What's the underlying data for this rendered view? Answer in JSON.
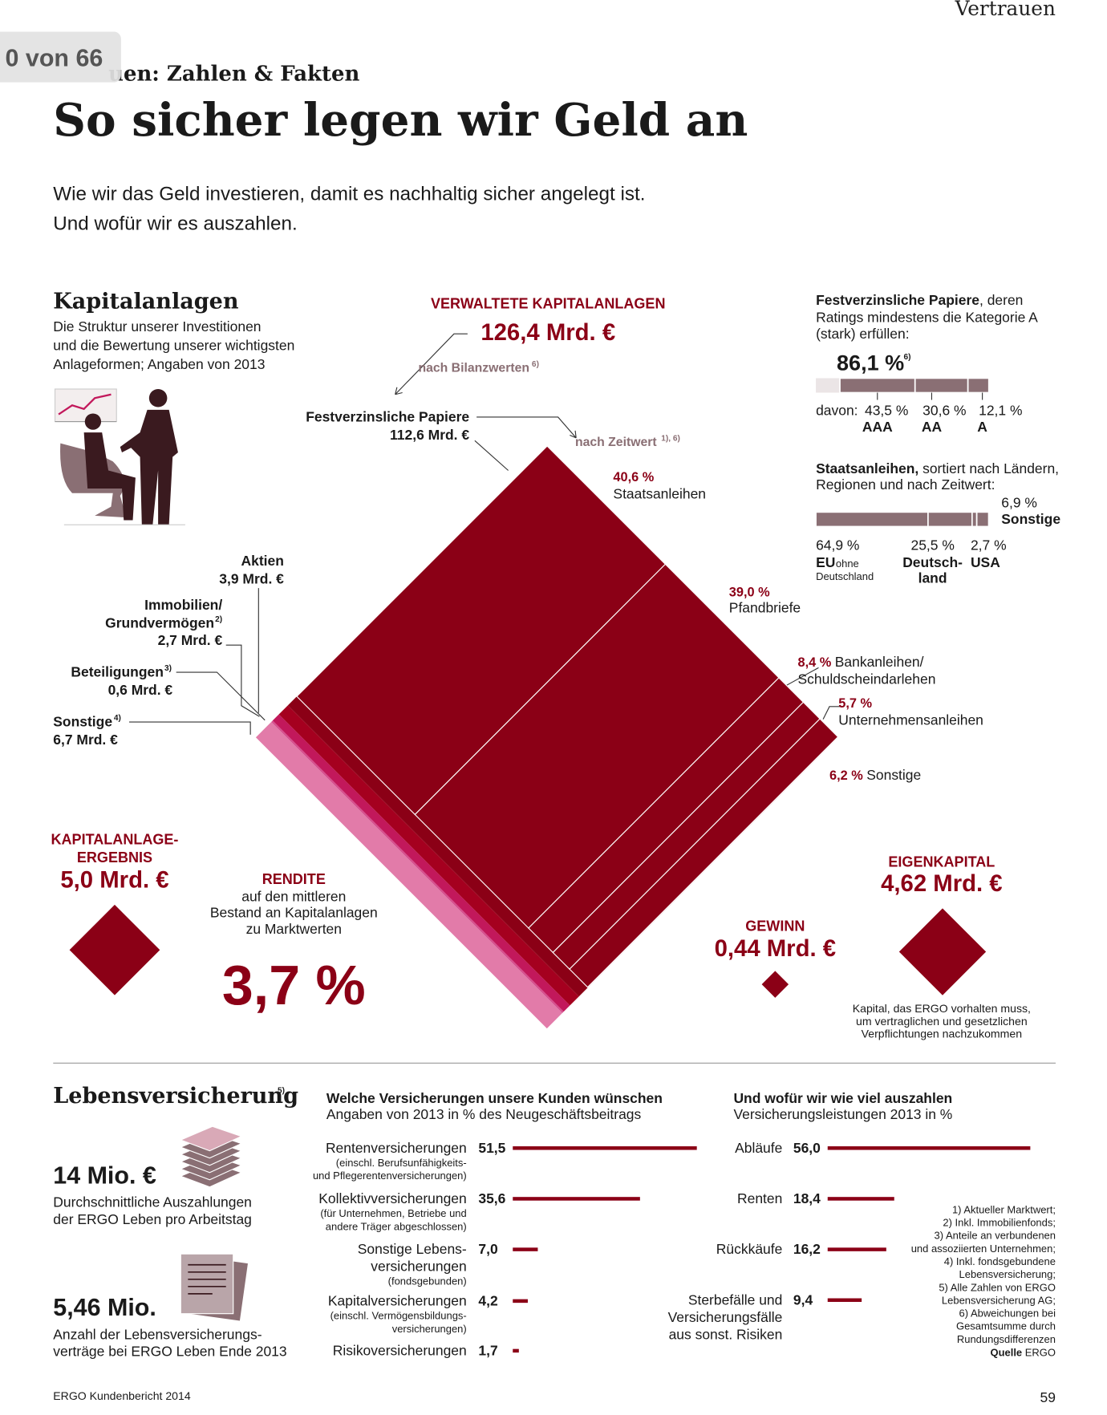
{
  "header": {
    "section": "Vertrauen",
    "page_indicator": "0 von 66",
    "kicker": "uen: Zahlen & Fakten",
    "title": "So sicher legen wir Geld an",
    "intro": [
      "Wie wir das Geld investieren, damit es nachhaltig sicher angelegt ist.",
      "Und wofür wir es auszahlen."
    ]
  },
  "kapitalanlagen": {
    "heading": "Kapitalanlagen",
    "description": [
      "Die Struktur unserer Investitionen",
      "und die Bewertung unserer wichtigsten",
      "Anlageformen; Angaben von 2013"
    ],
    "total": {
      "label": "VERWALTETE KAPITALANLAGEN",
      "value": 126.4,
      "value_label": "126,4 Mrd. €",
      "note": "nach Bilanzwerten",
      "ref": "6)"
    },
    "festverzinslich": {
      "name": "Festverzinsliche Papiere",
      "value": 112.6,
      "value_label": "112,6 Mrd. €",
      "color": "#8b0016",
      "breakdown_note": "nach Zeitwert",
      "breakdown_ref": "1), 6)",
      "breakdown": [
        {
          "share": 40.6,
          "share_label": "40,6 %",
          "name": [
            "Staatsanleihen"
          ]
        },
        {
          "share": 39.0,
          "share_label": "39,0 %",
          "name": [
            "Pfandbriefe"
          ]
        },
        {
          "share": 8.4,
          "share_label": "8,4 %",
          "name": [
            "Bankanleihen/",
            "Schuldscheindarlehen"
          ]
        },
        {
          "share": 5.7,
          "share_label": "5,7 %",
          "name": [
            "Unternehmensanleihen"
          ]
        },
        {
          "share": 6.2,
          "share_label": "6,2 %",
          "name": [
            "Sonstige"
          ]
        }
      ]
    },
    "other_assets": [
      {
        "name": [
          "Aktien"
        ],
        "value": 3.9,
        "value_label": "3,9 Mrd. €",
        "color": "#a5001f"
      },
      {
        "name": [
          "Immobilien/",
          "Grundvermögen"
        ],
        "ref": "2)",
        "value": 2.7,
        "value_label": "2,7 Mrd. €",
        "color": "#c2185b"
      },
      {
        "name": [
          "Beteiligungen"
        ],
        "ref": "3)",
        "value": 0.6,
        "value_label": "0,6 Mrd. €",
        "color": "#d6508f"
      },
      {
        "name": [
          "Sonstige"
        ],
        "ref": "4)",
        "value": 6.7,
        "value_label": "6,7 Mrd. €",
        "color": "#e27ba9"
      }
    ],
    "rating": {
      "title_bold": "Festverzinsliche Papiere",
      "title_rest": ", deren",
      "title_lines": [
        "Ratings mindestens die Kategorie A",
        "(stark) erfüllen:"
      ],
      "value": 86.1,
      "value_label": "86,1 %",
      "ref": "6)",
      "prefix": "davon:",
      "color": "#8a6f74",
      "segments": [
        {
          "share": 43.5,
          "share_label": "43,5 %",
          "name": "AAA"
        },
        {
          "share": 30.6,
          "share_label": "30,6 %",
          "name": "AA"
        },
        {
          "share": 12.1,
          "share_label": "12,1 %",
          "name": "A"
        }
      ]
    },
    "sovereign": {
      "title_bold": "Staatsanleihen,",
      "title_rest": " sortiert nach Ländern,",
      "title_line2": "Regionen und nach Zeitwert:",
      "color": "#8a6f74",
      "segments": [
        {
          "share": 64.9,
          "share_label": "64,9 %",
          "name": [
            "EU"
          ],
          "detail": [
            "ohne",
            "Deutschland"
          ]
        },
        {
          "share": 25.5,
          "share_label": "25,5 %",
          "name": [
            "Deutsch-",
            "land"
          ]
        },
        {
          "share": 2.7,
          "share_label": "2,7 %",
          "name": [
            "USA"
          ]
        },
        {
          "share": 6.9,
          "share_label": "6,9 %",
          "name": [
            "Sonstige"
          ]
        }
      ]
    },
    "ergebnis": {
      "label": [
        "KAPITALANLAGE-",
        "ERGEBNIS"
      ],
      "value": 5.0,
      "value_label": "5,0 Mrd. €"
    },
    "rendite": {
      "label": "RENDITE",
      "description": [
        "auf den mittleren",
        "Bestand an Kapitalanlagen",
        "zu Marktwerten"
      ],
      "value_label": "3,7 %"
    },
    "gewinn": {
      "label": "GEWINN",
      "value": 0.44,
      "value_label": "0,44 Mrd. €"
    },
    "eigenkapital": {
      "label": "EIGENKAPITAL",
      "value": 4.62,
      "value_label": "4,62 Mrd. €",
      "description": [
        "Kapital, das ERGO vorhalten muss,",
        "um vertraglichen und gesetzlichen",
        "Verpflichtungen nachzukommen"
      ]
    }
  },
  "lebensversicherung": {
    "heading": "Lebensversicherung",
    "ref": "5)",
    "facts": [
      {
        "value_label": "14 Mio. €",
        "description": [
          "Durchschnittliche Auszahlungen",
          "der ERGO Leben pro Arbeitstag"
        ]
      },
      {
        "value_label": "5,46 Mio.",
        "description": [
          "Anzahl der Lebensversicherungs-",
          "verträge bei ERGO Leben Ende 2013"
        ]
      }
    ],
    "new_business": {
      "title": "Welche Versicherungen unsere Kunden wünschen",
      "subtitle": "Angaben von 2013 in % des Neugeschäftsbeitrags",
      "color": "#8b0016",
      "categories": [
        {
          "name": [
            "Rentenversicherungen"
          ],
          "detail": [
            "(einschl. Berufsunfähigkeits-",
            "und Pflegerentenversicherungen)"
          ]
        },
        {
          "name": [
            "Kollektivversicherungen"
          ],
          "detail": [
            "(für Unternehmen, Betriebe und",
            "andere Träger abgeschlossen)"
          ]
        },
        {
          "name": [
            "Sonstige Lebens-",
            "versicherungen"
          ],
          "detail": [
            "(fondsgebunden)"
          ]
        },
        {
          "name": [
            "Kapitalversicherungen"
          ],
          "detail": [
            "(einschl. Vermögensbildungs-",
            "versicherungen)"
          ]
        },
        {
          "name": [
            "Risikoversicherungen"
          ],
          "detail": []
        }
      ],
      "values": [
        51.5,
        35.6,
        7.0,
        4.2,
        1.7
      ],
      "value_labels": [
        "51,5",
        "35,6",
        "7,0",
        "4,2",
        "1,7"
      ]
    },
    "payouts": {
      "title": "Und wofür wir wie viel auszahlen",
      "subtitle": "Versicherungsleistungen 2013 in %",
      "color": "#8b0016",
      "categories": [
        {
          "name": [
            "Abläufe"
          ]
        },
        {
          "name": [
            "Renten"
          ]
        },
        {
          "name": [
            "Rückkäufe"
          ]
        },
        {
          "name": [
            "Sterbefälle und",
            "Versicherungsfälle",
            "aus sonst. Risiken"
          ]
        }
      ],
      "values": [
        56.0,
        18.4,
        16.2,
        9.4
      ],
      "value_labels": [
        "56,0",
        "18,4",
        "16,2",
        "9,4"
      ]
    }
  },
  "footnotes": [
    "1) Aktueller Marktwert;",
    "2) Inkl. Immobilienfonds;",
    "3) Anteile an verbundenen",
    "und assoziierten Unternehmen;",
    "4) Inkl. fondsgebundene",
    "Lebensversicherung;",
    "5) Alle Zahlen von ERGO",
    "Lebensversicherung AG;",
    "6) Abweichungen bei",
    "Gesamtsumme durch",
    "Rundungsdifferenzen"
  ],
  "source_label": "Quelle",
  "source": "ERGO",
  "footer": {
    "publication": "ERGO Kundenbericht 2014",
    "page_number": "59"
  }
}
